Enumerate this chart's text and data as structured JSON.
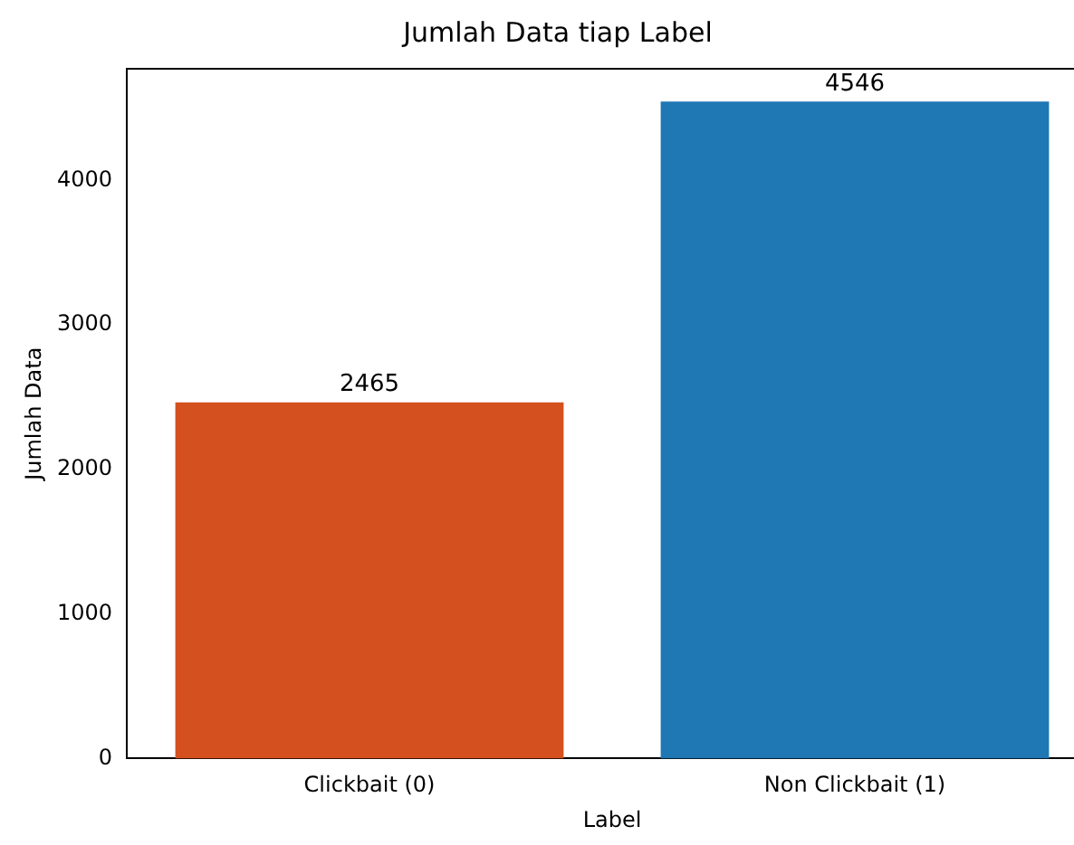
{
  "chart_data": {
    "type": "bar",
    "title": "Jumlah Data tiap Label",
    "xlabel": "Label",
    "ylabel": "Jumlah Data",
    "categories": [
      "Clickbait (0)",
      "Non Clickbait (1)"
    ],
    "values": [
      2465,
      4546
    ],
    "colors": [
      "#d5501f",
      "#1f77b4"
    ],
    "ylim": [
      0,
      4773
    ],
    "yticks": [
      0,
      1000,
      2000,
      3000,
      4000
    ],
    "grid": false,
    "data_labels": true
  }
}
